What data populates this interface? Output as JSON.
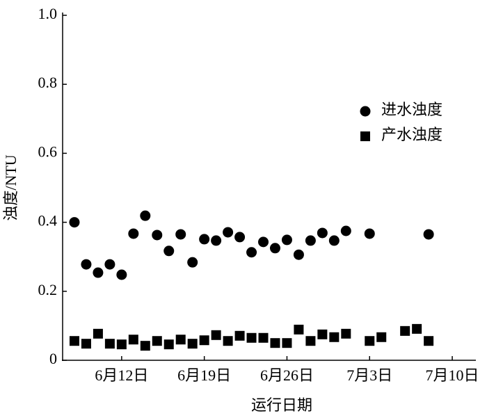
{
  "chart_data": {
    "type": "scatter",
    "x_label": "运行日期",
    "y_label": "浊度/NTU",
    "xlim": [
      "6月7日",
      "7月12日"
    ],
    "xticks": [
      "6月12日",
      "6月19日",
      "6月26日",
      "7月3日",
      "7月10日"
    ],
    "ylim": [
      0,
      1
    ],
    "yticks": [
      0,
      0.2,
      0.4,
      0.6,
      0.8,
      {
        "value": 1,
        "label": "1.0"
      }
    ],
    "legend": "upper right",
    "series": [
      {
        "name": "进水浊度",
        "marker": "circle",
        "color": "#000000",
        "x": [
          "6月8日",
          "6月9日",
          "6月10日",
          "6月11日",
          "6月12日",
          "6月13日",
          "6月14日",
          "6月15日",
          "6月16日",
          "6月17日",
          "6月18日",
          "6月19日",
          "6月20日",
          "6月21日",
          "6月22日",
          "6月23日",
          "6月24日",
          "6月25日",
          "6月26日",
          "6月27日",
          "6月28日",
          "6月29日",
          "6月30日",
          "7月1日",
          "7月3日",
          "7月8日"
        ],
        "values": [
          0.4,
          0.278,
          0.254,
          0.278,
          0.248,
          0.367,
          0.419,
          0.363,
          0.317,
          0.365,
          0.284,
          0.351,
          0.347,
          0.371,
          0.357,
          0.313,
          0.343,
          0.325,
          0.349,
          0.306,
          0.347,
          0.369,
          0.347,
          0.375,
          0.367,
          0.365
        ]
      },
      {
        "name": "产水浊度",
        "marker": "square",
        "color": "#000000",
        "x": [
          "6月8日",
          "6月9日",
          "6月10日",
          "6月11日",
          "6月12日",
          "6月13日",
          "6月14日",
          "6月15日",
          "6月16日",
          "6月17日",
          "6月18日",
          "6月19日",
          "6月20日",
          "6月21日",
          "6月22日",
          "6月23日",
          "6月24日",
          "6月25日",
          "6月26日",
          "6月27日",
          "6月28日",
          "6月29日",
          "6月30日",
          "7月1日",
          "7月3日",
          "7月4日",
          "7月6日",
          "7月7日",
          "7月8日"
        ],
        "values": [
          0.056,
          0.048,
          0.077,
          0.048,
          0.046,
          0.06,
          0.042,
          0.056,
          0.046,
          0.06,
          0.048,
          0.058,
          0.073,
          0.056,
          0.071,
          0.065,
          0.065,
          0.05,
          0.05,
          0.089,
          0.056,
          0.075,
          0.067,
          0.077,
          0.056,
          0.067,
          0.085,
          0.091,
          0.056
        ]
      }
    ]
  }
}
